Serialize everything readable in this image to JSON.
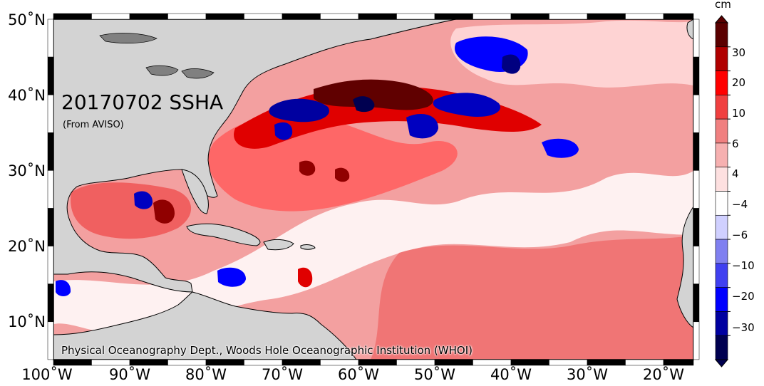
{
  "map": {
    "title": "20170702 SSHA",
    "subtitle": "(From AVISO)",
    "credit": "Physical Oceanography Dept., Woods Hole Oceanographic Institution (WHOI)",
    "lat_labels": [
      "50˚N",
      "40˚N",
      "30˚N",
      "20˚N",
      "10˚N"
    ],
    "lon_labels": [
      "100˚W",
      "90˚W",
      "80˚W",
      "70˚W",
      "60˚W",
      "50˚W",
      "40˚W",
      "30˚W",
      "20˚W"
    ],
    "land_color": "#d3d3d3",
    "coast_color": "#000000"
  },
  "colorbar": {
    "unit": "cm",
    "labels": [
      "30",
      "20",
      "10",
      "6",
      "4",
      "−4",
      "−6",
      "−10",
      "−20",
      "−30"
    ],
    "colors": [
      "#5a0000",
      "#b00000",
      "#ff0000",
      "#f04040",
      "#f08080",
      "#f6b0b0",
      "#fde0e0",
      "#ffffff",
      "#d0d0ff",
      "#8080f0",
      "#4040f0",
      "#0000ff",
      "#0000a0",
      "#000050"
    ]
  }
}
